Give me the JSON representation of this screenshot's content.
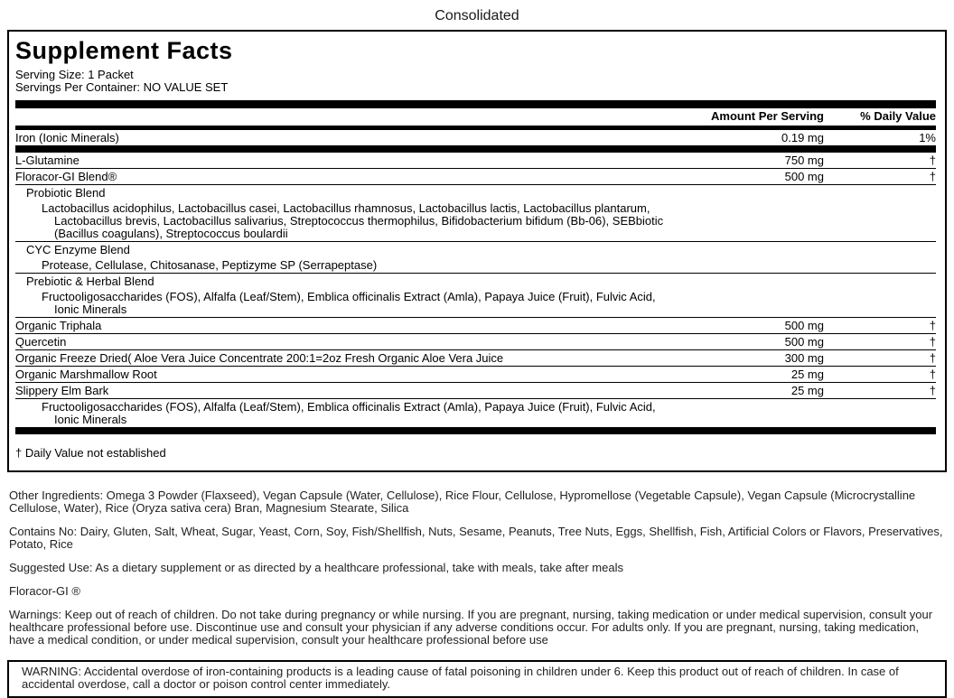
{
  "page": {
    "title": "Consolidated"
  },
  "panel": {
    "title": "Supplement Facts",
    "serving_size": "Serving Size: 1 Packet",
    "servings_per_container": "Servings Per Container: NO VALUE SET",
    "columns": {
      "amount": "Amount Per Serving",
      "daily_value": "% Daily Value"
    },
    "rows": [
      {
        "name": "Iron (Ionic Minerals)",
        "amount": "0.19 mg",
        "dv": "1%",
        "indent": 0,
        "rule": "none",
        "bar_after": 8
      },
      {
        "name": "L-Glutamine",
        "amount": "750 mg",
        "dv": "†",
        "indent": 0,
        "rule": "thin"
      },
      {
        "name": "Floracor-GI Blend®",
        "amount": "500 mg",
        "dv": "†",
        "indent": 0,
        "rule": "thin"
      },
      {
        "name": "Probiotic Blend",
        "amount": "",
        "dv": "",
        "indent": 1,
        "rule": "none"
      },
      {
        "name": "Lactobacillus acidophilus, Lactobacillus casei, Lactobacillus rhamnosus, Lactobacillus lactis, Lactobacillus plantarum, Lactobacillus brevis, Lactobacillus salivarius, Streptococcus thermophilus, Bifidobacterium bifidum (Bb-06), SEBbiotic (Bacillus coagulans), Streptococcus boulardii",
        "amount": "",
        "dv": "",
        "indent": 2,
        "rule": "thin"
      },
      {
        "name": "CYC Enzyme Blend",
        "amount": "",
        "dv": "",
        "indent": 1,
        "rule": "none"
      },
      {
        "name": "Protease, Cellulase, Chitosanase, Peptizyme SP (Serrapeptase)",
        "amount": "",
        "dv": "",
        "indent": 2,
        "rule": "thin"
      },
      {
        "name": "Prebiotic & Herbal Blend",
        "amount": "",
        "dv": "",
        "indent": 1,
        "rule": "none"
      },
      {
        "name": "Fructooligosaccharides (FOS), Alfalfa (Leaf/Stem), Emblica officinalis Extract (Amla), Papaya Juice (Fruit), Fulvic Acid, Ionic Minerals",
        "amount": "",
        "dv": "",
        "indent": 2,
        "rule": "thin"
      },
      {
        "name": "Organic Triphala",
        "amount": "500 mg",
        "dv": "†",
        "indent": 0,
        "rule": "thin"
      },
      {
        "name": "Quercetin",
        "amount": "500 mg",
        "dv": "†",
        "indent": 0,
        "rule": "thin"
      },
      {
        "name": "Organic Freeze Dried( Aloe Vera Juice Concentrate 200:1=2oz Fresh Organic Aloe Vera Juice",
        "amount": "300 mg",
        "dv": "†",
        "indent": 0,
        "rule": "thin"
      },
      {
        "name": "Organic Marshmallow Root",
        "amount": "25 mg",
        "dv": "†",
        "indent": 0,
        "rule": "thin"
      },
      {
        "name": "Slippery Elm Bark",
        "amount": "25 mg",
        "dv": "†",
        "indent": 0,
        "rule": "thin"
      },
      {
        "name": "Fructooligosaccharides (FOS), Alfalfa (Leaf/Stem), Emblica officinalis Extract (Amla), Papaya Juice (Fruit), Fulvic Acid, Ionic Minerals",
        "amount": "",
        "dv": "",
        "indent": 2,
        "rule": "none",
        "bar_after": 8
      }
    ],
    "footnote": "† Daily Value not established"
  },
  "sections": {
    "other_ingredients": "Other Ingredients: Omega 3 Powder (Flaxseed), Vegan Capsule (Water, Cellulose), Rice Flour, Cellulose, Hypromellose (Vegetable Capsule), Vegan Capsule (Microcrystalline Cellulose, Water), Rice (Oryza sativa cera) Bran, Magnesium Stearate, Silica",
    "contains_no": "Contains No: Dairy, Gluten, Salt, Wheat, Sugar, Yeast, Corn, Soy, Fish/Shellfish, Nuts, Sesame, Peanuts, Tree Nuts, Eggs, Shellfish, Fish, Artificial Colors or Flavors, Preservatives, Potato, Rice",
    "suggested_use": "Suggested Use: As a dietary supplement or as directed by a healthcare professional, take with meals, take after meals",
    "product_name": "Floracor-GI ®",
    "warnings": "Warnings: Keep out of reach of children. Do not take during pregnancy or while nursing. If you are pregnant, nursing, taking medication or under medical supervision, consult your healthcare professional before use. Discontinue use and consult your physician if any adverse conditions occur. For adults only. If you are pregnant, nursing, taking medication, have a medical condition, or under medical supervision, consult your healthcare professional before use",
    "warning_box": "WARNING: Accidental overdose of iron-containing products is a leading cause of fatal poisoning in children under 6. Keep this product out of reach of children. In case of accidental overdose, call a doctor or poison control center immediately."
  },
  "colors": {
    "text": "#000000",
    "bar": "#000000",
    "background": "#ffffff"
  }
}
